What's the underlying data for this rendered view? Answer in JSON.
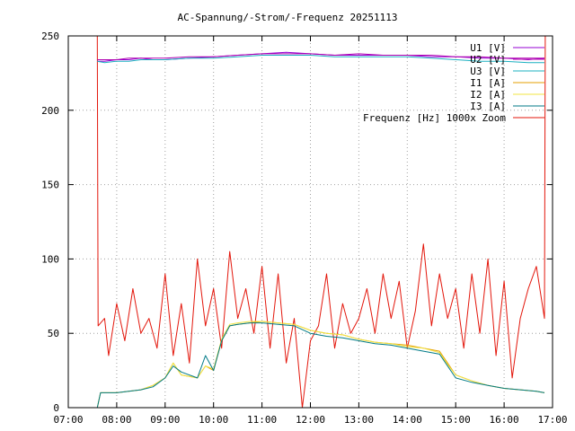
{
  "chart_data": {
    "type": "line",
    "title": "AC-Spannung/-Strom/-Frequenz 20251113",
    "xlabel": "",
    "ylabel": "",
    "xlim": [
      "07:00",
      "17:00"
    ],
    "ylim": [
      0,
      250
    ],
    "x_ticks": [
      "07:00",
      "08:00",
      "09:00",
      "10:00",
      "11:00",
      "12:00",
      "13:00",
      "14:00",
      "15:00",
      "16:00",
      "17:00"
    ],
    "y_ticks": [
      0,
      50,
      100,
      150,
      200,
      250
    ],
    "grid": true,
    "legend_position": "top-right",
    "series": [
      {
        "name": "U1 [V]",
        "color": "#9400d3",
        "x": [
          "07:36",
          "07:45",
          "08:00",
          "08:15",
          "08:30",
          "08:45",
          "09:00",
          "09:30",
          "10:00",
          "10:30",
          "11:00",
          "11:30",
          "12:00",
          "12:30",
          "13:00",
          "13:30",
          "14:00",
          "14:30",
          "15:00",
          "15:30",
          "16:00",
          "16:30",
          "16:50"
        ],
        "values": [
          233,
          233,
          234,
          234,
          235,
          234,
          234,
          235,
          236,
          237,
          238,
          239,
          238,
          237,
          237,
          237,
          237,
          236,
          236,
          235,
          235,
          234,
          235
        ]
      },
      {
        "name": "U2 [V]",
        "color": "#b000b0",
        "x": [
          "07:36",
          "07:45",
          "08:00",
          "08:15",
          "08:30",
          "08:45",
          "09:00",
          "09:30",
          "10:00",
          "10:30",
          "11:00",
          "11:30",
          "12:00",
          "12:30",
          "13:00",
          "13:30",
          "14:00",
          "14:30",
          "15:00",
          "15:30",
          "16:00",
          "16:30",
          "16:50"
        ],
        "values": [
          234,
          234,
          234,
          235,
          235,
          235,
          235,
          236,
          236,
          237,
          238,
          238,
          238,
          237,
          238,
          237,
          237,
          237,
          236,
          236,
          235,
          235,
          235
        ]
      },
      {
        "name": "U3 [V]",
        "color": "#1cb0c0",
        "x": [
          "07:36",
          "07:45",
          "08:00",
          "08:15",
          "08:30",
          "08:45",
          "09:00",
          "09:30",
          "10:00",
          "10:30",
          "11:00",
          "11:30",
          "12:00",
          "12:30",
          "13:00",
          "13:30",
          "14:00",
          "14:30",
          "15:00",
          "15:30",
          "16:00",
          "16:30",
          "16:50"
        ],
        "values": [
          233,
          232,
          233,
          233,
          234,
          234,
          234,
          235,
          235,
          236,
          237,
          237,
          237,
          236,
          236,
          236,
          236,
          235,
          234,
          233,
          233,
          232,
          232
        ]
      },
      {
        "name": "I1 [A]",
        "color": "#e69f00",
        "x": [
          "07:36",
          "07:40",
          "08:00",
          "08:30",
          "08:45",
          "09:00",
          "09:10",
          "09:20",
          "09:40",
          "09:50",
          "10:00",
          "10:10",
          "10:20",
          "10:30",
          "10:45",
          "11:00",
          "11:20",
          "11:40",
          "12:00",
          "12:20",
          "12:40",
          "13:00",
          "13:20",
          "13:40",
          "14:00",
          "14:20",
          "14:40",
          "14:50",
          "15:00",
          "15:20",
          "15:40",
          "16:00",
          "16:20",
          "16:40",
          "16:50"
        ],
        "values": [
          0,
          10,
          10,
          12,
          15,
          20,
          30,
          22,
          20,
          28,
          25,
          45,
          55,
          56,
          57,
          58,
          57,
          56,
          52,
          50,
          49,
          46,
          44,
          43,
          42,
          40,
          38,
          30,
          22,
          18,
          15,
          13,
          12,
          11,
          10
        ]
      },
      {
        "name": "I2 [A]",
        "color": "#f0e442",
        "x": [
          "07:36",
          "07:40",
          "08:00",
          "08:30",
          "08:45",
          "09:00",
          "09:10",
          "09:20",
          "09:40",
          "09:50",
          "10:00",
          "10:10",
          "10:20",
          "10:30",
          "10:45",
          "11:00",
          "11:20",
          "11:40",
          "12:00",
          "12:20",
          "12:40",
          "13:00",
          "13:20",
          "13:40",
          "14:00",
          "14:20",
          "14:40",
          "14:50",
          "15:00",
          "15:20",
          "15:40",
          "16:00",
          "16:20",
          "16:40",
          "16:50"
        ],
        "values": [
          0,
          10,
          10,
          12,
          15,
          20,
          30,
          22,
          20,
          28,
          26,
          46,
          56,
          57,
          58,
          58,
          57,
          56,
          52,
          50,
          49,
          46,
          44,
          43,
          41,
          40,
          37,
          29,
          22,
          18,
          15,
          13,
          12,
          11,
          10
        ]
      },
      {
        "name": "I3 [A]",
        "color": "#007a87",
        "x": [
          "07:36",
          "07:40",
          "08:00",
          "08:30",
          "08:45",
          "09:00",
          "09:10",
          "09:20",
          "09:40",
          "09:50",
          "10:00",
          "10:10",
          "10:20",
          "10:30",
          "10:45",
          "11:00",
          "11:20",
          "11:40",
          "12:00",
          "12:20",
          "12:40",
          "13:00",
          "13:20",
          "13:40",
          "14:00",
          "14:20",
          "14:40",
          "14:50",
          "15:00",
          "15:20",
          "15:40",
          "16:00",
          "16:20",
          "16:40",
          "16:50"
        ],
        "values": [
          0,
          10,
          10,
          12,
          14,
          20,
          28,
          24,
          20,
          35,
          25,
          45,
          55,
          56,
          57,
          57,
          56,
          55,
          50,
          48,
          47,
          45,
          43,
          42,
          40,
          38,
          36,
          28,
          20,
          17,
          15,
          13,
          12,
          11,
          10
        ]
      },
      {
        "name": "Frequenz [Hz] 1000x Zoom",
        "color": "#e3160b",
        "x": [
          "07:34",
          "07:36",
          "07:37",
          "07:45",
          "07:50",
          "08:00",
          "08:10",
          "08:20",
          "08:30",
          "08:40",
          "08:50",
          "09:00",
          "09:10",
          "09:20",
          "09:30",
          "09:40",
          "09:50",
          "10:00",
          "10:10",
          "10:20",
          "10:30",
          "10:40",
          "10:50",
          "11:00",
          "11:10",
          "11:20",
          "11:30",
          "11:40",
          "11:50",
          "12:00",
          "12:10",
          "12:20",
          "12:30",
          "12:40",
          "12:50",
          "13:00",
          "13:10",
          "13:20",
          "13:30",
          "13:40",
          "13:50",
          "14:00",
          "14:10",
          "14:20",
          "14:30",
          "14:40",
          "14:50",
          "15:00",
          "15:10",
          "15:20",
          "15:30",
          "15:40",
          "15:50",
          "16:00",
          "16:10",
          "16:20",
          "16:30",
          "16:40",
          "16:50",
          "16:51"
        ],
        "values": [
          250,
          250,
          55,
          60,
          35,
          70,
          45,
          80,
          50,
          60,
          40,
          90,
          35,
          70,
          30,
          100,
          55,
          80,
          40,
          105,
          60,
          80,
          50,
          95,
          40,
          90,
          30,
          60,
          0,
          45,
          55,
          90,
          40,
          70,
          50,
          60,
          80,
          50,
          90,
          60,
          85,
          40,
          65,
          110,
          55,
          90,
          60,
          80,
          40,
          90,
          50,
          100,
          35,
          85,
          20,
          60,
          80,
          95,
          60,
          250
        ]
      }
    ]
  }
}
